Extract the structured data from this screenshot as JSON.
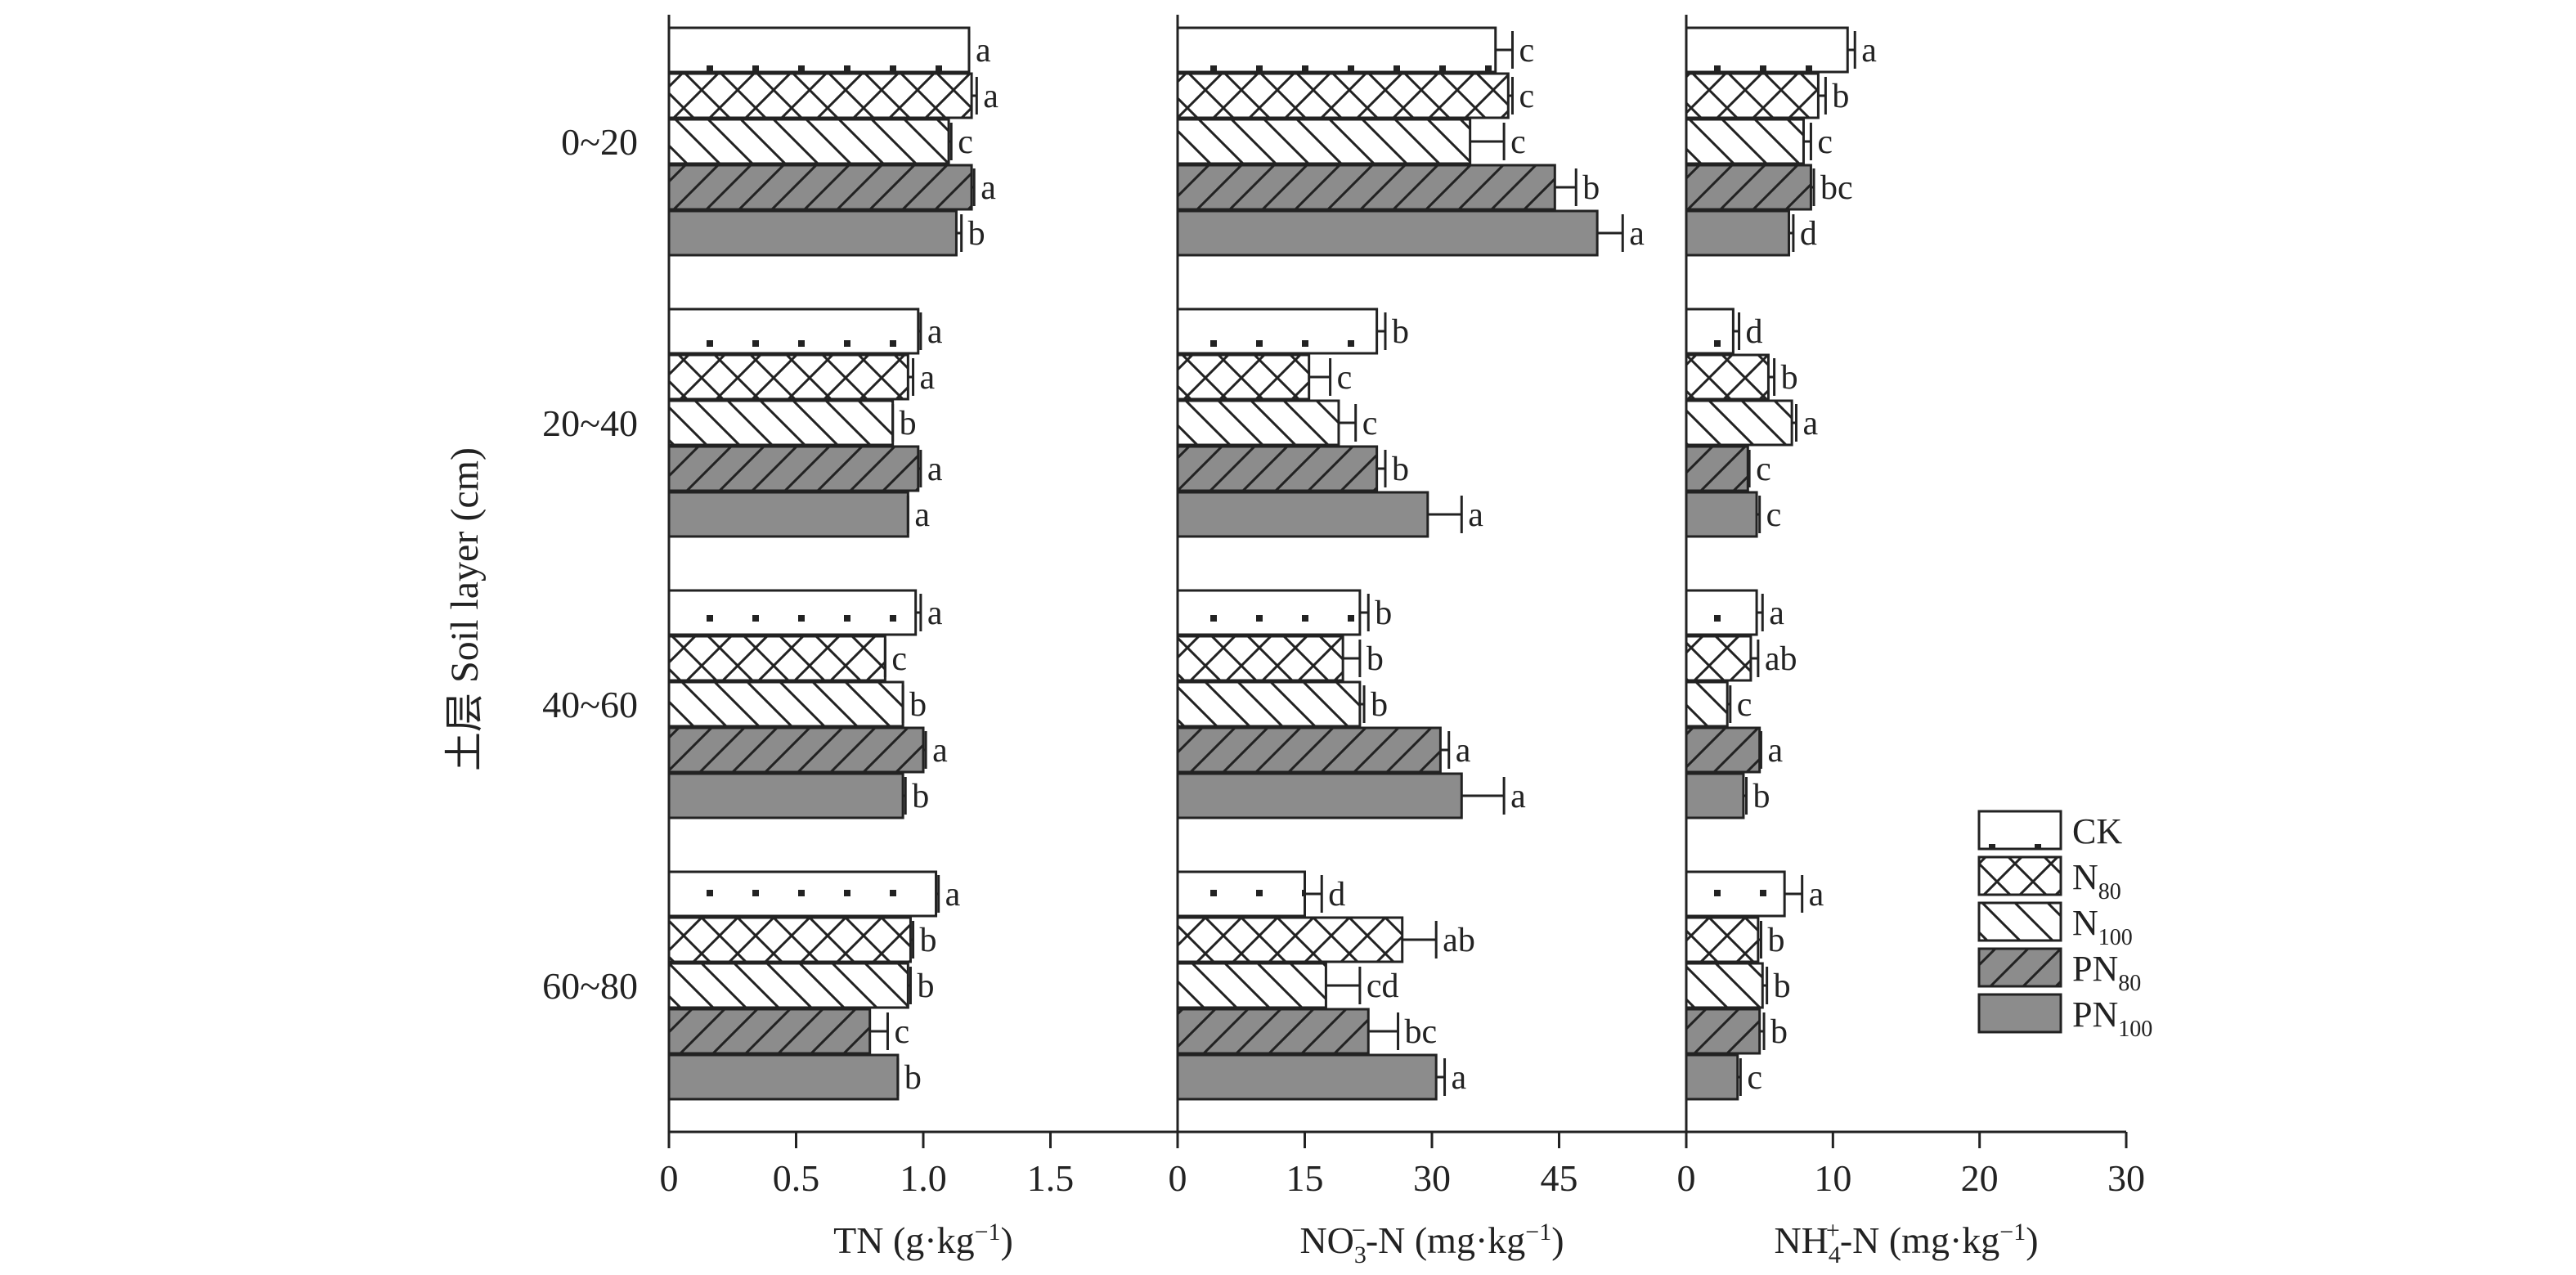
{
  "chart_data": {
    "type": "bar",
    "orientation": "horizontal",
    "ytitle": "土层 Soil layer (cm)",
    "layers": [
      "0~20",
      "20~40",
      "40~60",
      "60~80"
    ],
    "treatments": [
      {
        "base": "CK",
        "sub": "",
        "pattern": "dots"
      },
      {
        "base": "N",
        "sub": "80",
        "pattern": "crosshatch"
      },
      {
        "base": "N",
        "sub": "100",
        "pattern": "backslash"
      },
      {
        "base": "PN",
        "sub": "80",
        "pattern": "slash-gray"
      },
      {
        "base": "PN",
        "sub": "100",
        "pattern": "solid-gray"
      }
    ],
    "colors": {
      "fill_gray": "#8c8c8c",
      "line": "#222222",
      "background": "#ffffff"
    },
    "panels": [
      {
        "label_parts": [
          "TN (g·kg",
          "−1",
          ")"
        ],
        "label_format": "sup",
        "xlim": [
          0,
          2
        ],
        "ticks": [
          0,
          0.5,
          1.0,
          1.5
        ],
        "tick_labels": [
          "0",
          "0.5",
          "1.0",
          "1.5"
        ],
        "values": [
          [
            1.18,
            1.19,
            1.1,
            1.19,
            1.13
          ],
          [
            0.98,
            0.94,
            0.88,
            0.98,
            0.94
          ],
          [
            0.97,
            0.85,
            0.92,
            1.0,
            0.92
          ],
          [
            1.05,
            0.95,
            0.94,
            0.79,
            0.9
          ]
        ],
        "errors": [
          [
            0.0,
            0.02,
            0.01,
            0.01,
            0.02
          ],
          [
            0.01,
            0.02,
            0.0,
            0.01,
            0.0
          ],
          [
            0.02,
            0.0,
            0.0,
            0.01,
            0.01
          ],
          [
            0.01,
            0.01,
            0.01,
            0.07,
            0.0
          ]
        ],
        "letters": [
          [
            "a",
            "a",
            "c",
            "a",
            "b"
          ],
          [
            "a",
            "a",
            "b",
            "a",
            "a"
          ],
          [
            "a",
            "c",
            "b",
            "a",
            "b"
          ],
          [
            "a",
            "b",
            "b",
            "c",
            "b"
          ]
        ]
      },
      {
        "label_parts": [
          "NO",
          "3",
          "−",
          "-N (mg·kg",
          "−1",
          ")"
        ],
        "label_format": "no3",
        "xlim": [
          0,
          60
        ],
        "ticks": [
          0,
          15,
          30,
          45
        ],
        "tick_labels": [
          "0",
          "15",
          "30",
          "45"
        ],
        "values": [
          [
            37.5,
            39,
            34.5,
            44.5,
            49.5
          ],
          [
            23.5,
            15.5,
            19,
            23.5,
            29.5
          ],
          [
            21.5,
            19.5,
            21.5,
            31,
            33.5
          ],
          [
            15,
            26.5,
            17.5,
            22.5,
            30.5
          ]
        ],
        "errors": [
          [
            2,
            0.5,
            4,
            2.5,
            3
          ],
          [
            1,
            2.5,
            2,
            1,
            4
          ],
          [
            1,
            2,
            0.5,
            1,
            5
          ],
          [
            2,
            4,
            4,
            3.5,
            1
          ]
        ],
        "letters": [
          [
            "c",
            "c",
            "c",
            "b",
            "a"
          ],
          [
            "b",
            "c",
            "c",
            "b",
            "a"
          ],
          [
            "b",
            "b",
            "b",
            "a",
            "a"
          ],
          [
            "d",
            "ab",
            "cd",
            "bc",
            "a"
          ]
        ]
      },
      {
        "label_parts": [
          "NH",
          "4",
          "+",
          "-N (mg·kg",
          "−1",
          ")"
        ],
        "label_format": "nh4",
        "xlim": [
          0,
          30
        ],
        "ticks": [
          0,
          10,
          20,
          30
        ],
        "tick_labels": [
          "0",
          "10",
          "20",
          "30"
        ],
        "values": [
          [
            11,
            9,
            8,
            8.5,
            7
          ],
          [
            3.2,
            5.6,
            7.2,
            4.2,
            4.8
          ],
          [
            4.8,
            4.4,
            2.8,
            5,
            3.9
          ],
          [
            6.7,
            4.9,
            5.2,
            5,
            3.5
          ]
        ],
        "errors": [
          [
            0.5,
            0.5,
            0.5,
            0.2,
            0.3
          ],
          [
            0.4,
            0.4,
            0.3,
            0.1,
            0.2
          ],
          [
            0.4,
            0.5,
            0.2,
            0.1,
            0.2
          ],
          [
            1.2,
            0.2,
            0.3,
            0.3,
            0.2
          ]
        ],
        "letters": [
          [
            "a",
            "b",
            "c",
            "bc",
            "d"
          ],
          [
            "d",
            "b",
            "a",
            "c",
            "c"
          ],
          [
            "a",
            "ab",
            "c",
            "a",
            "b"
          ],
          [
            "a",
            "b",
            "b",
            "b",
            "c"
          ]
        ]
      }
    ]
  }
}
